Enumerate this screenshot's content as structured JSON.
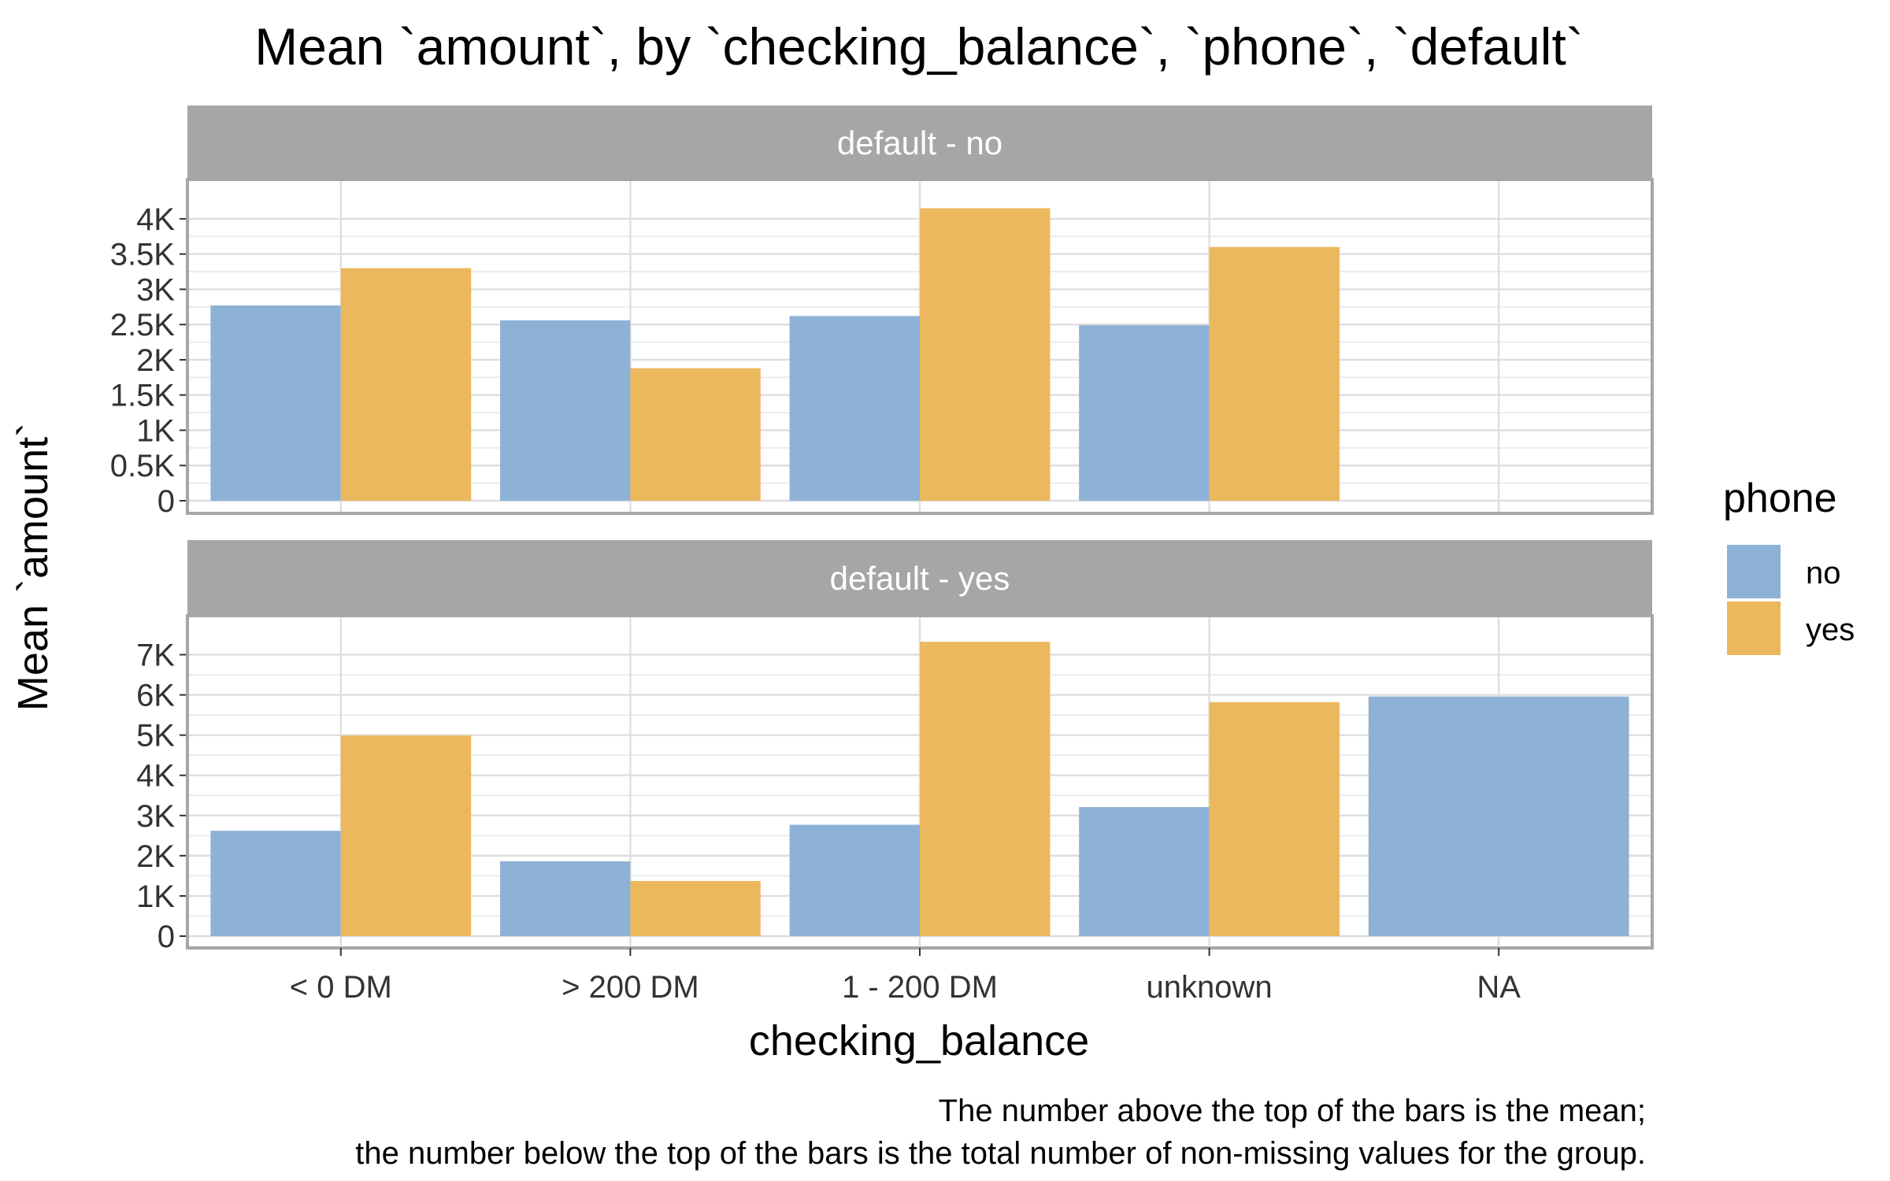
{
  "chart_data": {
    "type": "bar",
    "title": "Mean `amount`, by `checking_balance`, `phone`, `default`",
    "xlabel": "checking_balance",
    "ylabel": "Mean `amount`",
    "categories": [
      "< 0 DM",
      "> 200 DM",
      "1 - 200 DM",
      "unknown",
      "NA"
    ],
    "legend": {
      "title": "phone",
      "position": "right",
      "entries": [
        "no",
        "yes"
      ]
    },
    "colors": {
      "no": "#8eb1d6",
      "yes": "#ebb85d",
      "strip": "#a6a6a6",
      "grid": "#dedede",
      "border": "#a6a6a6"
    },
    "grid": true,
    "panels": [
      {
        "label": "default - no",
        "ylim": [
          0,
          4200
        ],
        "yticks": [
          0,
          500,
          1000,
          1500,
          2000,
          2500,
          3000,
          3500,
          4000
        ],
        "ytick_labels": [
          "0",
          "0.5K",
          "1K",
          "1.5K",
          "2K",
          "2.5K",
          "3K",
          "3.5K",
          "4K"
        ],
        "series": [
          {
            "name": "no",
            "values": [
              2770,
              2560,
              2620,
              2490,
              null
            ]
          },
          {
            "name": "yes",
            "values": [
              3300,
              1880,
              4150,
              3600,
              null
            ]
          }
        ]
      },
      {
        "label": "default - yes",
        "ylim": [
          0,
          7500
        ],
        "yticks": [
          0,
          1000,
          2000,
          3000,
          4000,
          5000,
          6000,
          7000
        ],
        "ytick_labels": [
          "0",
          "1K",
          "2K",
          "3K",
          "4K",
          "5K",
          "6K",
          "7K"
        ],
        "series": [
          {
            "name": "no",
            "values": [
              2620,
              1860,
              2770,
              3210,
              5960
            ]
          },
          {
            "name": "yes",
            "values": [
              4990,
              1370,
              7320,
              5820,
              null
            ]
          }
        ]
      }
    ],
    "caption": [
      "The number above the top of the bars is the mean;",
      "the number below the top of the bars is the total number of non-missing values for the group."
    ]
  }
}
